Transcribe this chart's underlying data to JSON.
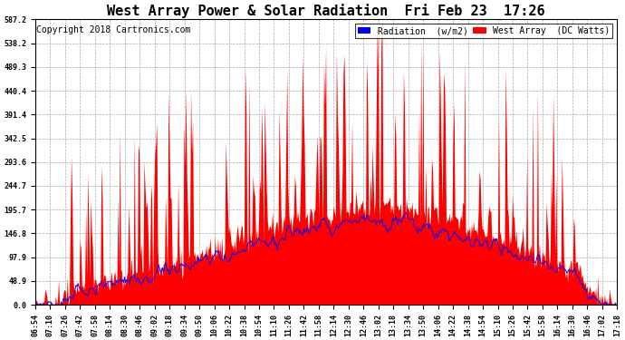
{
  "title": "West Array Power & Solar Radiation  Fri Feb 23  17:26",
  "copyright": "Copyright 2018 Cartronics.com",
  "legend_radiation": "Radiation  (w/m2)",
  "legend_west": "West Array  (DC Watts)",
  "y_ticks": [
    0.0,
    48.9,
    97.9,
    146.8,
    195.7,
    244.7,
    293.6,
    342.5,
    391.4,
    440.4,
    489.3,
    538.2,
    587.2
  ],
  "y_max": 587.2,
  "y_min": 0.0,
  "color_radiation": "#0000FF",
  "color_west": "#FF0000",
  "color_west_fill": "#FF0000",
  "background_color": "#FFFFFF",
  "grid_color": "#AAAAAA",
  "title_fontsize": 11,
  "copyright_fontsize": 7,
  "legend_fontsize": 7,
  "tick_fontsize": 6,
  "x_tick_labels": [
    "06:54",
    "07:10",
    "07:26",
    "07:42",
    "07:58",
    "08:14",
    "08:30",
    "08:46",
    "09:02",
    "09:18",
    "09:34",
    "09:50",
    "10:06",
    "10:22",
    "10:38",
    "10:54",
    "11:10",
    "11:26",
    "11:42",
    "11:58",
    "12:14",
    "12:30",
    "12:46",
    "13:02",
    "13:18",
    "13:34",
    "13:50",
    "14:06",
    "14:22",
    "14:38",
    "14:54",
    "15:10",
    "15:26",
    "15:42",
    "15:58",
    "16:14",
    "16:30",
    "16:46",
    "17:02",
    "17:18"
  ]
}
